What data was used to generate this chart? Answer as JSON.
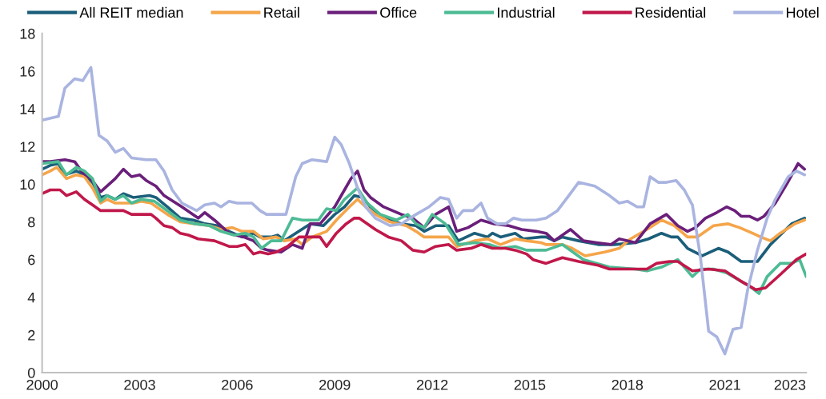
{
  "chart_data": {
    "type": "line",
    "xlim": [
      2000,
      2023.5
    ],
    "xticks": [
      2000,
      2003,
      2006,
      2009,
      2012,
      2015,
      2018,
      2021,
      2023
    ],
    "ylim": [
      0,
      18
    ],
    "yticks": [
      0,
      2,
      4,
      6,
      8,
      10,
      12,
      14,
      16,
      18
    ],
    "grid": false,
    "legend": "top",
    "marker": "none",
    "line_style": "solid",
    "series": [
      {
        "name": "All REIT median",
        "color": "#1b5e7a",
        "x": [
          2000.0,
          2000.25,
          2000.5,
          2000.7,
          2001.05,
          2001.3,
          2001.55,
          2001.8,
          2002.0,
          2002.25,
          2002.5,
          2002.8,
          2003.3,
          2003.5,
          2003.85,
          2004.25,
          2004.65,
          2005.0,
          2005.4,
          2005.75,
          2006.15,
          2006.5,
          2006.7,
          2007.05,
          2007.25,
          2007.45,
          2007.8,
          2008.25,
          2008.65,
          2009.0,
          2009.3,
          2009.6,
          2009.85,
          2010.1,
          2010.5,
          2011.05,
          2011.5,
          2011.75,
          2012.1,
          2012.5,
          2012.8,
          2013.3,
          2013.7,
          2013.85,
          2014.1,
          2014.55,
          2014.8,
          2015.35,
          2015.5,
          2015.75,
          2016.0,
          2016.5,
          2017.1,
          2017.6,
          2018.25,
          2018.65,
          2019.05,
          2019.35,
          2019.55,
          2019.85,
          2020.3,
          2020.8,
          2021.1,
          2021.5,
          2022.0,
          2022.4,
          2022.7,
          2023.05,
          2023.45
        ],
        "values": [
          10.8,
          11.0,
          11.1,
          10.5,
          10.7,
          10.5,
          10.1,
          9.3,
          9.4,
          9.2,
          9.5,
          9.3,
          9.4,
          9.3,
          8.8,
          8.2,
          8.1,
          7.9,
          7.8,
          7.5,
          7.2,
          7.4,
          7.2,
          7.2,
          7.3,
          7.0,
          7.4,
          7.9,
          7.8,
          8.4,
          8.8,
          9.4,
          9.3,
          8.8,
          8.2,
          7.9,
          7.8,
          7.5,
          7.8,
          7.8,
          7.0,
          7.4,
          7.2,
          7.4,
          7.2,
          7.4,
          7.1,
          7.2,
          7.2,
          7.0,
          7.2,
          7.0,
          6.8,
          6.8,
          6.9,
          7.1,
          7.4,
          7.2,
          7.2,
          6.6,
          6.2,
          6.6,
          6.4,
          5.9,
          5.9,
          6.8,
          7.3,
          7.9,
          8.2
        ]
      },
      {
        "name": "Retail",
        "color": "#f5a54a",
        "x": [
          2000.0,
          2000.25,
          2000.45,
          2000.75,
          2001.05,
          2001.3,
          2001.55,
          2001.8,
          2002.0,
          2002.25,
          2002.5,
          2002.8,
          2003.05,
          2003.35,
          2003.85,
          2004.25,
          2004.7,
          2005.15,
          2005.5,
          2005.85,
          2006.15,
          2006.5,
          2006.8,
          2007.2,
          2007.45,
          2007.8,
          2008.0,
          2008.3,
          2008.75,
          2009.05,
          2009.45,
          2009.7,
          2009.95,
          2010.25,
          2010.7,
          2011.2,
          2011.5,
          2011.75,
          2012.1,
          2012.5,
          2012.75,
          2013.3,
          2013.7,
          2014.1,
          2014.55,
          2014.9,
          2015.35,
          2015.5,
          2016.0,
          2016.3,
          2016.7,
          2017.3,
          2017.75,
          2018.1,
          2018.6,
          2019.05,
          2019.45,
          2019.85,
          2020.15,
          2020.65,
          2021.1,
          2021.45,
          2021.85,
          2022.1,
          2022.4,
          2022.7,
          2023.15,
          2023.45
        ],
        "values": [
          10.5,
          10.7,
          10.9,
          10.3,
          10.5,
          10.4,
          9.8,
          9.0,
          9.2,
          9.0,
          9.0,
          9.0,
          9.1,
          9.0,
          8.4,
          8.0,
          7.9,
          7.8,
          7.6,
          7.7,
          7.5,
          7.5,
          7.1,
          7.2,
          7.0,
          7.1,
          6.8,
          7.2,
          7.5,
          8.1,
          8.8,
          9.2,
          8.8,
          8.4,
          8.0,
          7.8,
          7.5,
          7.2,
          7.2,
          7.2,
          6.7,
          7.0,
          7.1,
          6.8,
          7.1,
          7.0,
          6.9,
          6.8,
          6.8,
          6.6,
          6.2,
          6.4,
          6.6,
          7.1,
          7.6,
          8.1,
          7.8,
          7.2,
          7.2,
          7.8,
          7.9,
          7.7,
          7.4,
          7.2,
          7.0,
          7.4,
          7.9,
          8.1
        ]
      },
      {
        "name": "Office",
        "color": "#6a1f7a",
        "x": [
          2000.0,
          2000.25,
          2000.7,
          2001.0,
          2001.25,
          2001.5,
          2001.8,
          2002.25,
          2002.5,
          2002.75,
          2003.0,
          2003.2,
          2003.5,
          2003.75,
          2004.3,
          2004.8,
          2005.0,
          2005.3,
          2005.75,
          2006.2,
          2006.5,
          2006.75,
          2006.95,
          2007.35,
          2007.7,
          2008.0,
          2008.25,
          2008.55,
          2009.0,
          2009.3,
          2009.5,
          2009.7,
          2009.9,
          2010.1,
          2010.5,
          2011.05,
          2011.4,
          2011.75,
          2012.1,
          2012.5,
          2012.75,
          2013.1,
          2013.5,
          2013.9,
          2014.35,
          2014.75,
          2015.2,
          2015.5,
          2015.75,
          2016.25,
          2016.65,
          2017.05,
          2017.5,
          2017.75,
          2018.25,
          2018.7,
          2019.2,
          2019.55,
          2019.85,
          2020.1,
          2020.4,
          2020.75,
          2021.05,
          2021.3,
          2021.5,
          2021.75,
          2022.0,
          2022.2,
          2022.55,
          2022.9,
          2023.25,
          2023.45
        ],
        "values": [
          11.2,
          11.2,
          11.3,
          11.2,
          10.6,
          10.3,
          9.6,
          10.3,
          10.8,
          10.4,
          10.5,
          10.2,
          9.9,
          9.4,
          8.8,
          8.2,
          8.5,
          8.1,
          7.4,
          7.2,
          7.0,
          6.6,
          6.5,
          6.4,
          6.8,
          6.6,
          7.9,
          7.9,
          8.8,
          9.7,
          10.3,
          10.7,
          9.7,
          9.3,
          8.8,
          8.4,
          8.2,
          7.7,
          8.4,
          8.8,
          7.5,
          7.7,
          8.1,
          7.9,
          7.8,
          7.6,
          7.5,
          7.4,
          7.0,
          7.6,
          7.0,
          6.9,
          6.8,
          7.1,
          6.9,
          7.9,
          8.4,
          7.8,
          7.5,
          7.7,
          8.2,
          8.5,
          8.8,
          8.6,
          8.3,
          8.3,
          8.1,
          8.3,
          9.0,
          10.0,
          11.1,
          10.8
        ]
      },
      {
        "name": "Industrial",
        "color": "#4dbb94",
        "x": [
          2000.0,
          2000.5,
          2000.75,
          2001.05,
          2001.3,
          2001.55,
          2001.8,
          2002.0,
          2002.25,
          2002.5,
          2002.75,
          2003.05,
          2003.45,
          2003.85,
          2004.25,
          2004.7,
          2005.15,
          2005.5,
          2005.9,
          2006.25,
          2006.5,
          2006.75,
          2007.05,
          2007.35,
          2007.7,
          2008.0,
          2008.5,
          2008.75,
          2009.05,
          2009.3,
          2009.7,
          2010.0,
          2010.4,
          2010.9,
          2011.25,
          2011.5,
          2011.75,
          2012.0,
          2012.4,
          2012.8,
          2013.3,
          2013.75,
          2014.1,
          2014.55,
          2014.9,
          2015.35,
          2015.5,
          2016.0,
          2016.65,
          2017.45,
          2018.25,
          2018.6,
          2019.05,
          2019.55,
          2020.0,
          2020.25,
          2020.65,
          2021.05,
          2021.45,
          2021.75,
          2022.05,
          2022.3,
          2022.7,
          2023.05,
          2023.3,
          2023.5
        ],
        "values": [
          11.1,
          11.2,
          10.5,
          10.9,
          10.7,
          10.3,
          9.1,
          9.4,
          9.2,
          9.4,
          9.0,
          9.2,
          9.1,
          8.6,
          8.1,
          7.9,
          7.8,
          7.5,
          7.3,
          7.4,
          7.2,
          6.6,
          7.0,
          7.0,
          8.2,
          8.1,
          8.1,
          8.7,
          8.6,
          9.2,
          9.8,
          9.0,
          8.4,
          8.1,
          8.4,
          7.9,
          7.7,
          8.4,
          7.9,
          6.8,
          6.9,
          6.8,
          6.6,
          6.7,
          6.5,
          6.5,
          6.5,
          6.8,
          6.0,
          5.6,
          5.5,
          5.4,
          5.6,
          6.0,
          5.1,
          5.5,
          5.5,
          5.3,
          4.9,
          4.6,
          4.2,
          5.1,
          5.8,
          5.8,
          6.0,
          5.1
        ]
      },
      {
        "name": "Residential",
        "color": "#c0184a",
        "x": [
          2000.0,
          2000.25,
          2000.55,
          2000.75,
          2001.05,
          2001.3,
          2001.55,
          2001.8,
          2002.25,
          2002.5,
          2002.75,
          2003.1,
          2003.35,
          2003.5,
          2003.75,
          2004.0,
          2004.25,
          2004.5,
          2004.8,
          2005.3,
          2005.75,
          2006.0,
          2006.25,
          2006.5,
          2006.7,
          2006.95,
          2007.2,
          2007.55,
          2007.9,
          2008.25,
          2008.55,
          2008.75,
          2009.05,
          2009.35,
          2009.6,
          2009.75,
          2010.25,
          2010.65,
          2011.05,
          2011.4,
          2011.75,
          2012.1,
          2012.5,
          2012.75,
          2013.2,
          2013.5,
          2013.85,
          2014.25,
          2014.55,
          2014.9,
          2015.1,
          2015.5,
          2016.0,
          2016.5,
          2017.1,
          2017.45,
          2017.75,
          2018.25,
          2018.6,
          2018.9,
          2019.3,
          2019.55,
          2020.0,
          2020.5,
          2021.0,
          2021.45,
          2021.95,
          2022.25,
          2022.7,
          2023.2,
          2023.5
        ],
        "values": [
          9.5,
          9.7,
          9.7,
          9.4,
          9.6,
          9.2,
          8.9,
          8.6,
          8.6,
          8.6,
          8.4,
          8.4,
          8.4,
          8.2,
          7.8,
          7.7,
          7.4,
          7.3,
          7.1,
          7.0,
          6.7,
          6.7,
          6.8,
          6.3,
          6.4,
          6.3,
          6.4,
          6.7,
          7.2,
          7.2,
          7.2,
          6.7,
          7.4,
          7.9,
          8.2,
          8.2,
          7.6,
          7.2,
          7.0,
          6.5,
          6.4,
          6.7,
          6.8,
          6.5,
          6.6,
          6.8,
          6.6,
          6.6,
          6.5,
          6.3,
          6.0,
          5.8,
          6.1,
          5.9,
          5.7,
          5.5,
          5.5,
          5.5,
          5.5,
          5.8,
          5.9,
          5.9,
          5.4,
          5.5,
          5.4,
          4.9,
          4.4,
          4.5,
          5.2,
          6.0,
          6.3
        ]
      },
      {
        "name": "Hotel",
        "color": "#a9b4e0",
        "x": [
          2000.0,
          2000.5,
          2000.7,
          2001.0,
          2001.25,
          2001.5,
          2001.75,
          2002.0,
          2002.25,
          2002.5,
          2002.75,
          2003.2,
          2003.5,
          2003.75,
          2004.0,
          2004.3,
          2004.75,
          2005.0,
          2005.3,
          2005.5,
          2005.75,
          2006.0,
          2006.45,
          2006.7,
          2006.9,
          2007.5,
          2007.8,
          2008.0,
          2008.3,
          2008.75,
          2009.0,
          2009.2,
          2009.45,
          2009.7,
          2009.95,
          2010.25,
          2010.7,
          2011.05,
          2011.5,
          2011.9,
          2012.25,
          2012.5,
          2012.75,
          2012.95,
          2013.25,
          2013.5,
          2013.7,
          2014.0,
          2014.25,
          2014.5,
          2014.75,
          2015.2,
          2015.5,
          2015.85,
          2016.2,
          2016.5,
          2017.0,
          2017.45,
          2017.75,
          2018.0,
          2018.3,
          2018.5,
          2018.7,
          2018.95,
          2019.2,
          2019.5,
          2019.75,
          2020.0,
          2020.25,
          2020.5,
          2020.75,
          2021.0,
          2021.25,
          2021.5,
          2021.7,
          2022.0,
          2022.3,
          2022.55,
          2022.95,
          2023.2,
          2023.45
        ],
        "values": [
          13.4,
          13.6,
          15.1,
          15.6,
          15.5,
          16.2,
          12.6,
          12.3,
          11.7,
          11.9,
          11.4,
          11.3,
          11.3,
          10.7,
          9.7,
          9.0,
          8.6,
          8.9,
          9.0,
          8.8,
          9.1,
          9.0,
          9.0,
          8.6,
          8.4,
          8.4,
          10.4,
          11.1,
          11.3,
          11.2,
          12.5,
          12.1,
          11.1,
          9.8,
          8.8,
          8.2,
          7.8,
          7.9,
          8.4,
          8.8,
          9.3,
          9.2,
          8.2,
          8.6,
          8.6,
          9.0,
          8.2,
          7.9,
          7.9,
          8.2,
          8.1,
          8.1,
          8.2,
          8.6,
          9.4,
          10.1,
          9.9,
          9.4,
          9.0,
          9.1,
          8.8,
          8.8,
          10.4,
          10.1,
          10.1,
          10.2,
          9.7,
          8.9,
          6.1,
          2.2,
          1.9,
          1.0,
          2.3,
          2.4,
          4.4,
          6.5,
          8.2,
          9.2,
          10.4,
          10.7,
          10.5
        ]
      }
    ]
  }
}
